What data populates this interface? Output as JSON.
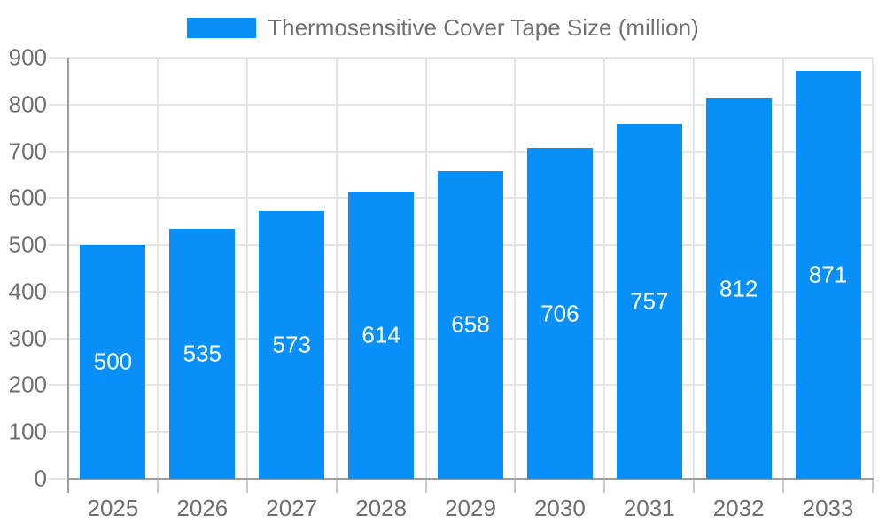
{
  "chart_data": {
    "type": "bar",
    "title": "Thermosensitive Cover Tape Size (million)",
    "categories": [
      "2025",
      "2026",
      "2027",
      "2028",
      "2029",
      "2030",
      "2031",
      "2032",
      "2033"
    ],
    "values": [
      500,
      535,
      573,
      614,
      658,
      706,
      757,
      812,
      871
    ],
    "xlabel": "",
    "ylabel": "",
    "ylim": [
      0,
      900
    ],
    "yticks": [
      0,
      100,
      200,
      300,
      400,
      500,
      600,
      700,
      800,
      900
    ],
    "grid": "horizontal-and-vertical",
    "legend_position": "top-center",
    "value_labels": "inside-center-white",
    "colors": {
      "bar": "#0990f8",
      "axis": "#9e9e9e",
      "grid": "#e6e6e6",
      "tick": "#c9c9c9",
      "text": "#6f6f6f",
      "value_label": "#ffffff",
      "background": "#ffffff"
    }
  }
}
